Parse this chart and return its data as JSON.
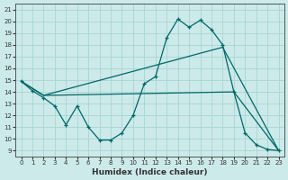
{
  "xlabel": "Humidex (Indice chaleur)",
  "bg_color": "#cceaea",
  "grid_color": "#aad4d4",
  "line_color": "#006666",
  "xlim": [
    -0.5,
    23.5
  ],
  "ylim": [
    8.5,
    21.5
  ],
  "yticks": [
    9,
    10,
    11,
    12,
    13,
    14,
    15,
    16,
    17,
    18,
    19,
    20,
    21
  ],
  "xticks": [
    0,
    1,
    2,
    3,
    4,
    5,
    6,
    7,
    8,
    9,
    10,
    11,
    12,
    13,
    14,
    15,
    16,
    17,
    18,
    19,
    20,
    21,
    22,
    23
  ],
  "series1_x": [
    0,
    1,
    2,
    3,
    4,
    5,
    6,
    7,
    8,
    9,
    10,
    11,
    12,
    13,
    14,
    15,
    16,
    17,
    18,
    19,
    20,
    21,
    22,
    23
  ],
  "series1_y": [
    14.9,
    14.1,
    13.5,
    12.8,
    11.2,
    12.8,
    11.0,
    9.9,
    9.9,
    10.5,
    12.0,
    14.7,
    15.3,
    18.6,
    20.2,
    19.5,
    20.1,
    19.3,
    18.0,
    14.0,
    10.5,
    9.5,
    9.1,
    9.0
  ],
  "series2_x": [
    0,
    2,
    19,
    23
  ],
  "series2_y": [
    14.9,
    13.7,
    14.0,
    9.0
  ],
  "series3_x": [
    0,
    2,
    18,
    23
  ],
  "series3_y": [
    14.9,
    13.7,
    17.8,
    9.0
  ]
}
